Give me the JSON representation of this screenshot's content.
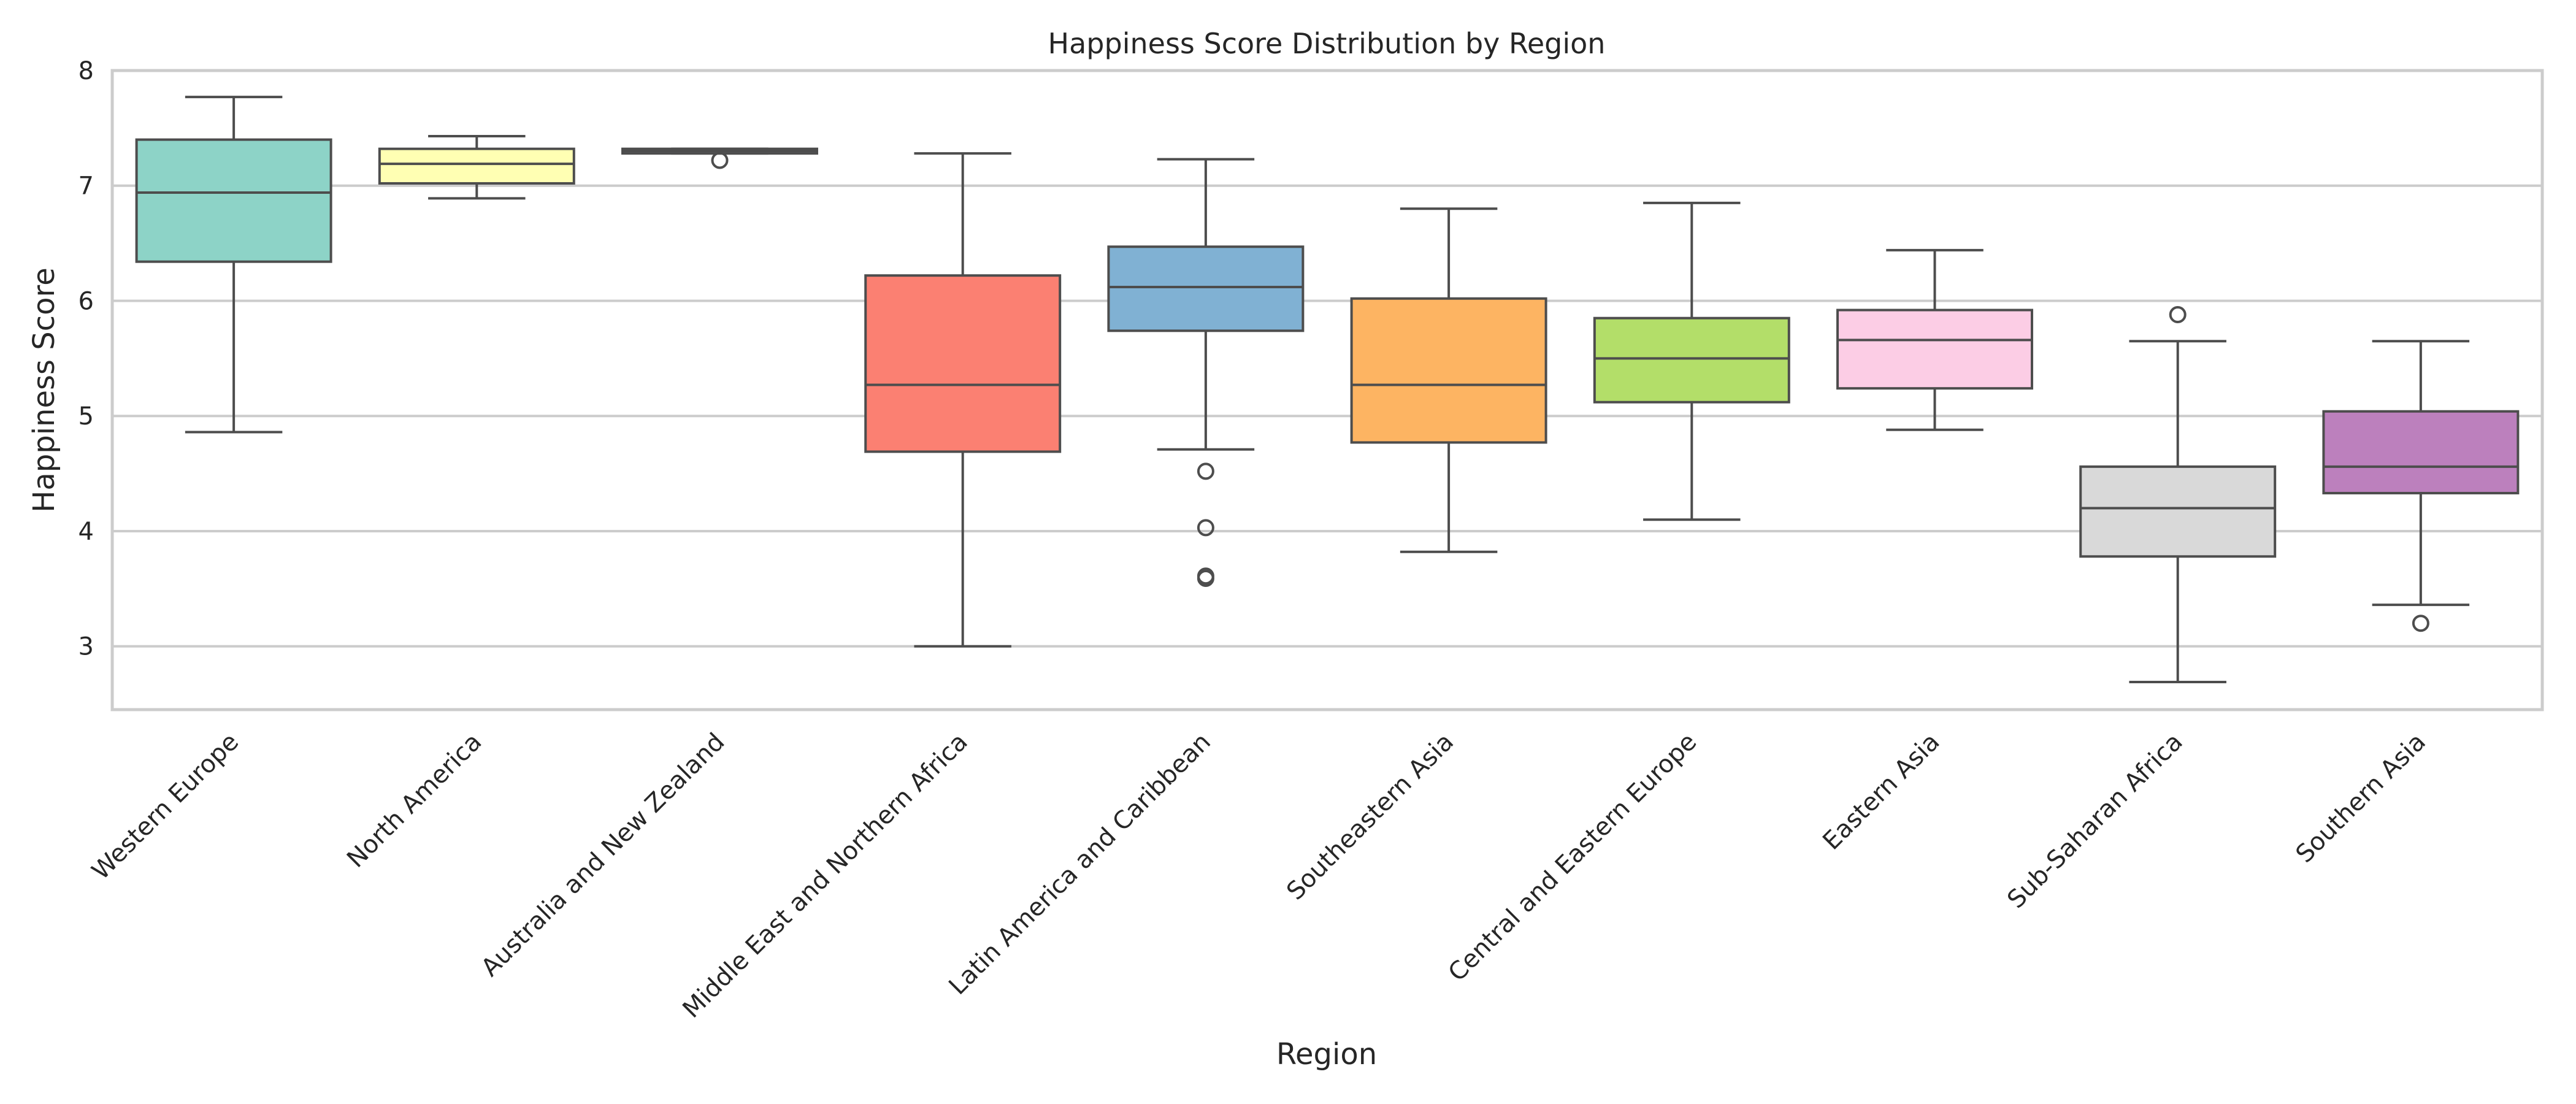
{
  "chart_data": {
    "type": "boxplot",
    "title": "Happiness Score Distribution by Region",
    "xlabel": "Region",
    "ylabel": "Happiness Score",
    "ylim": [
      2.45,
      8.0
    ],
    "yticks": [
      3,
      4,
      5,
      6,
      7,
      8
    ],
    "grid": "horizontal",
    "legend": "none",
    "categories": [
      "Western Europe",
      "North America",
      "Australia and New Zealand",
      "Middle East and Northern Africa",
      "Latin America and Caribbean",
      "Southeastern Asia",
      "Central and Eastern Europe",
      "Eastern Asia",
      "Sub-Saharan Africa",
      "Southern Asia"
    ],
    "colors": [
      "#8dd3c7",
      "#ffffb3",
      "#bebada",
      "#fb8072",
      "#80b1d3",
      "#fdb462",
      "#b3de69",
      "#fccde5",
      "#d9d9d9",
      "#bc80bd"
    ],
    "boxes": [
      {
        "whisker_low": 4.86,
        "q1": 6.34,
        "median": 6.94,
        "q3": 7.4,
        "whisker_high": 7.77,
        "outliers": []
      },
      {
        "whisker_low": 6.89,
        "q1": 7.02,
        "median": 7.19,
        "q3": 7.32,
        "whisker_high": 7.43,
        "outliers": []
      },
      {
        "whisker_low": 7.28,
        "q1": 7.28,
        "median": 7.3,
        "q3": 7.32,
        "whisker_high": 7.32,
        "outliers": [
          7.22
        ]
      },
      {
        "whisker_low": 3.0,
        "q1": 4.69,
        "median": 5.27,
        "q3": 6.22,
        "whisker_high": 7.28,
        "outliers": []
      },
      {
        "whisker_low": 4.71,
        "q1": 5.74,
        "median": 6.12,
        "q3": 6.47,
        "whisker_high": 7.23,
        "outliers": [
          4.52,
          4.03,
          3.61,
          3.59
        ]
      },
      {
        "whisker_low": 3.82,
        "q1": 4.77,
        "median": 5.27,
        "q3": 6.02,
        "whisker_high": 6.8,
        "outliers": []
      },
      {
        "whisker_low": 4.1,
        "q1": 5.12,
        "median": 5.5,
        "q3": 5.85,
        "whisker_high": 6.85,
        "outliers": []
      },
      {
        "whisker_low": 4.88,
        "q1": 5.24,
        "median": 5.66,
        "q3": 5.92,
        "whisker_high": 6.44,
        "outliers": []
      },
      {
        "whisker_low": 2.69,
        "q1": 3.78,
        "median": 4.2,
        "q3": 4.56,
        "whisker_high": 5.65,
        "outliers": [
          5.88
        ]
      },
      {
        "whisker_low": 3.36,
        "q1": 4.33,
        "median": 4.56,
        "q3": 5.04,
        "whisker_high": 5.65,
        "outliers": [
          3.2
        ]
      }
    ]
  }
}
